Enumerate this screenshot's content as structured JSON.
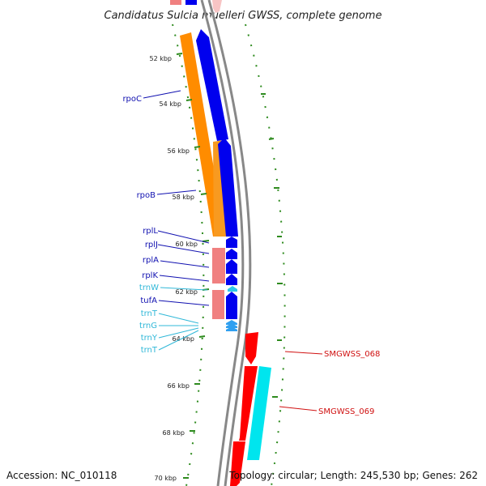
{
  "title": "Candidatus Sulcia muelleri GWSS, complete genome",
  "footer": {
    "accession": "Accession: NC_010118",
    "topology": "Topology: circular; Length: 245,530 bp; Genes: 262"
  },
  "kbp_labels": [
    "52 kbp",
    "54 kbp",
    "56 kbp",
    "58 kbp",
    "60 kbp",
    "62 kbp",
    "64 kbp",
    "66 kbp",
    "68 kbp",
    "70 kbp"
  ],
  "gene_labels": [
    {
      "text": "rpoC",
      "color": "#1010b0"
    },
    {
      "text": "rpoB",
      "color": "#1010b0"
    },
    {
      "text": "rplL",
      "color": "#1010b0"
    },
    {
      "text": "rplJ",
      "color": "#1010b0"
    },
    {
      "text": "rplA",
      "color": "#1010b0"
    },
    {
      "text": "rplK",
      "color": "#1010b0"
    },
    {
      "text": "trnW",
      "color": "#30b8d8"
    },
    {
      "text": "tufA",
      "color": "#1010b0"
    },
    {
      "text": "trnT",
      "color": "#30b8d8"
    },
    {
      "text": "trnG",
      "color": "#30b8d8"
    },
    {
      "text": "trnY",
      "color": "#30b8d8"
    },
    {
      "text": "trnT",
      "color": "#30b8d8"
    },
    {
      "text": "SMGWSS_068",
      "color": "#d01010"
    },
    {
      "text": "SMGWSS_069",
      "color": "#d01010"
    }
  ],
  "colors": {
    "backbone": "#888888",
    "cds_forward": "#0000ee",
    "cds_reverse": "#ff0000",
    "orange_feature": "#ff8c00",
    "pink_feature": "#f08080",
    "trna": "#00e5ee",
    "dot_ring": "#2e8b1e"
  }
}
